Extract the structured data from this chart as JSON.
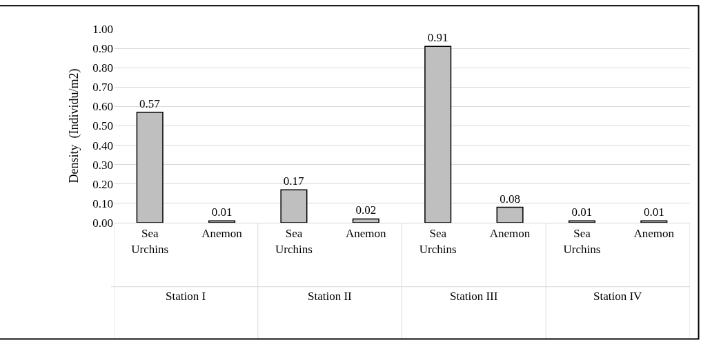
{
  "chart_data": {
    "type": "bar",
    "ylabel": "Density  (Individu/m2)",
    "categories": [
      "Sea Urchins",
      "Anemon",
      "Sea Urchins",
      "Anemon",
      "Sea Urchins",
      "Anemon",
      "Sea Urchins",
      "Anemon"
    ],
    "values": [
      0.57,
      0.01,
      0.17,
      0.02,
      0.91,
      0.08,
      0.01,
      0.01
    ],
    "color": "#bfbfbf",
    "data_labels": true,
    "grid": "y",
    "legend": false,
    "ylim": [
      0,
      1
    ],
    "yticks": [
      {
        "value": 0,
        "label": "0.00"
      },
      {
        "value": 0.1,
        "label": "0.10"
      },
      {
        "value": 0.2,
        "label": "0.20"
      },
      {
        "value": 0.3,
        "label": "0.30"
      },
      {
        "value": 0.4,
        "label": "0.40"
      },
      {
        "value": 0.5,
        "label": "0.50"
      },
      {
        "value": 0.6,
        "label": "0.60"
      },
      {
        "value": 0.7,
        "label": "0.70"
      },
      {
        "value": 0.8,
        "label": "0.80"
      },
      {
        "value": 0.9,
        "label": "0.90"
      },
      {
        "value": 1,
        "label": "1.00"
      }
    ],
    "annotations": [
      "Station I",
      "Station II",
      "Station III",
      "Station IV"
    ]
  }
}
